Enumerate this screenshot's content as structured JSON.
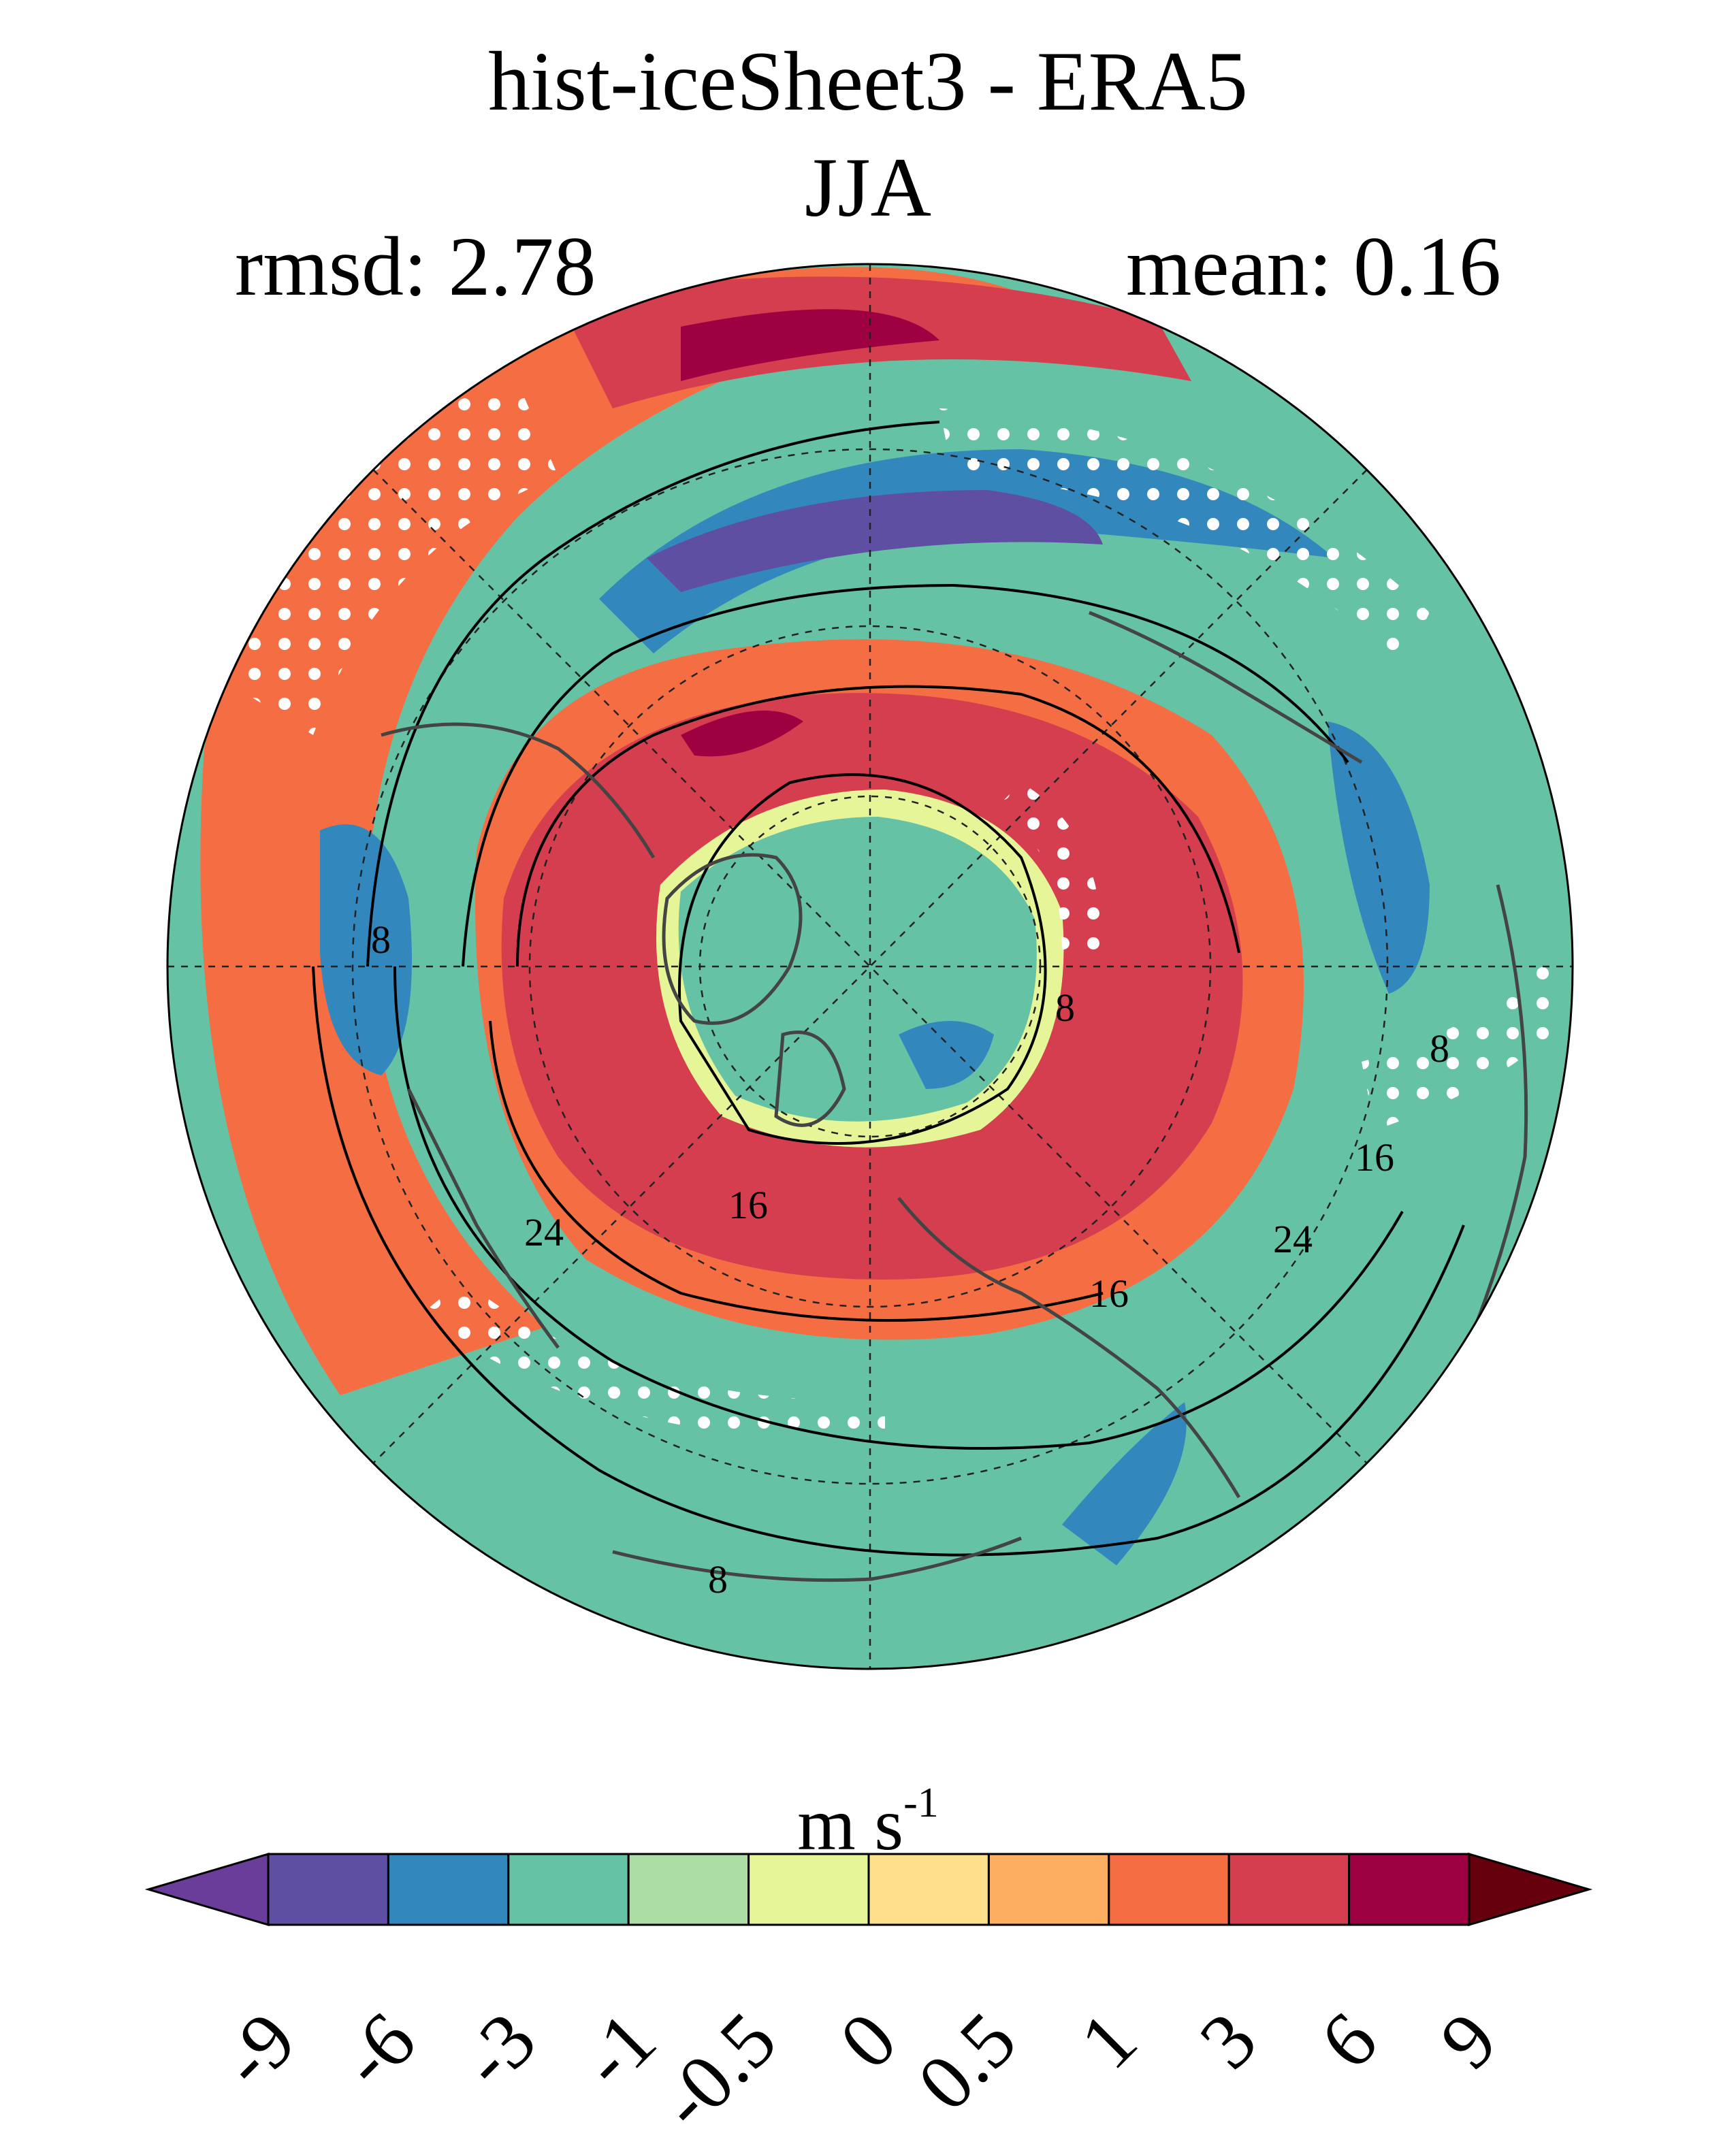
{
  "figure": {
    "title": "hist-iceSheet3 - ERA5",
    "season": "JJA",
    "rmsd_label": "rmsd: 2.78",
    "mean_label": "mean: 0.16"
  },
  "colorbar": {
    "unit_base": "m s",
    "unit_exp": "-1",
    "ticks": [
      "-9",
      "-6",
      "-3",
      "-1",
      "-0.5",
      "0",
      "0.5",
      "1",
      "3",
      "6",
      "9"
    ],
    "colors": [
      "#5e4fa2",
      "#3288bd",
      "#66c2a5",
      "#abdda4",
      "#e6f598",
      "#fee08b",
      "#fdae61",
      "#f46d43",
      "#d53e4f",
      "#9e0142"
    ],
    "under_color": "#6a3d9a",
    "over_color": "#67000d"
  },
  "map": {
    "projection": "north-polar-stereographic",
    "contour_labels": [
      "8",
      "16",
      "24",
      "8",
      "16",
      "24",
      "16",
      "8",
      "8"
    ],
    "stippling": "white dots mark non-significant differences"
  }
}
